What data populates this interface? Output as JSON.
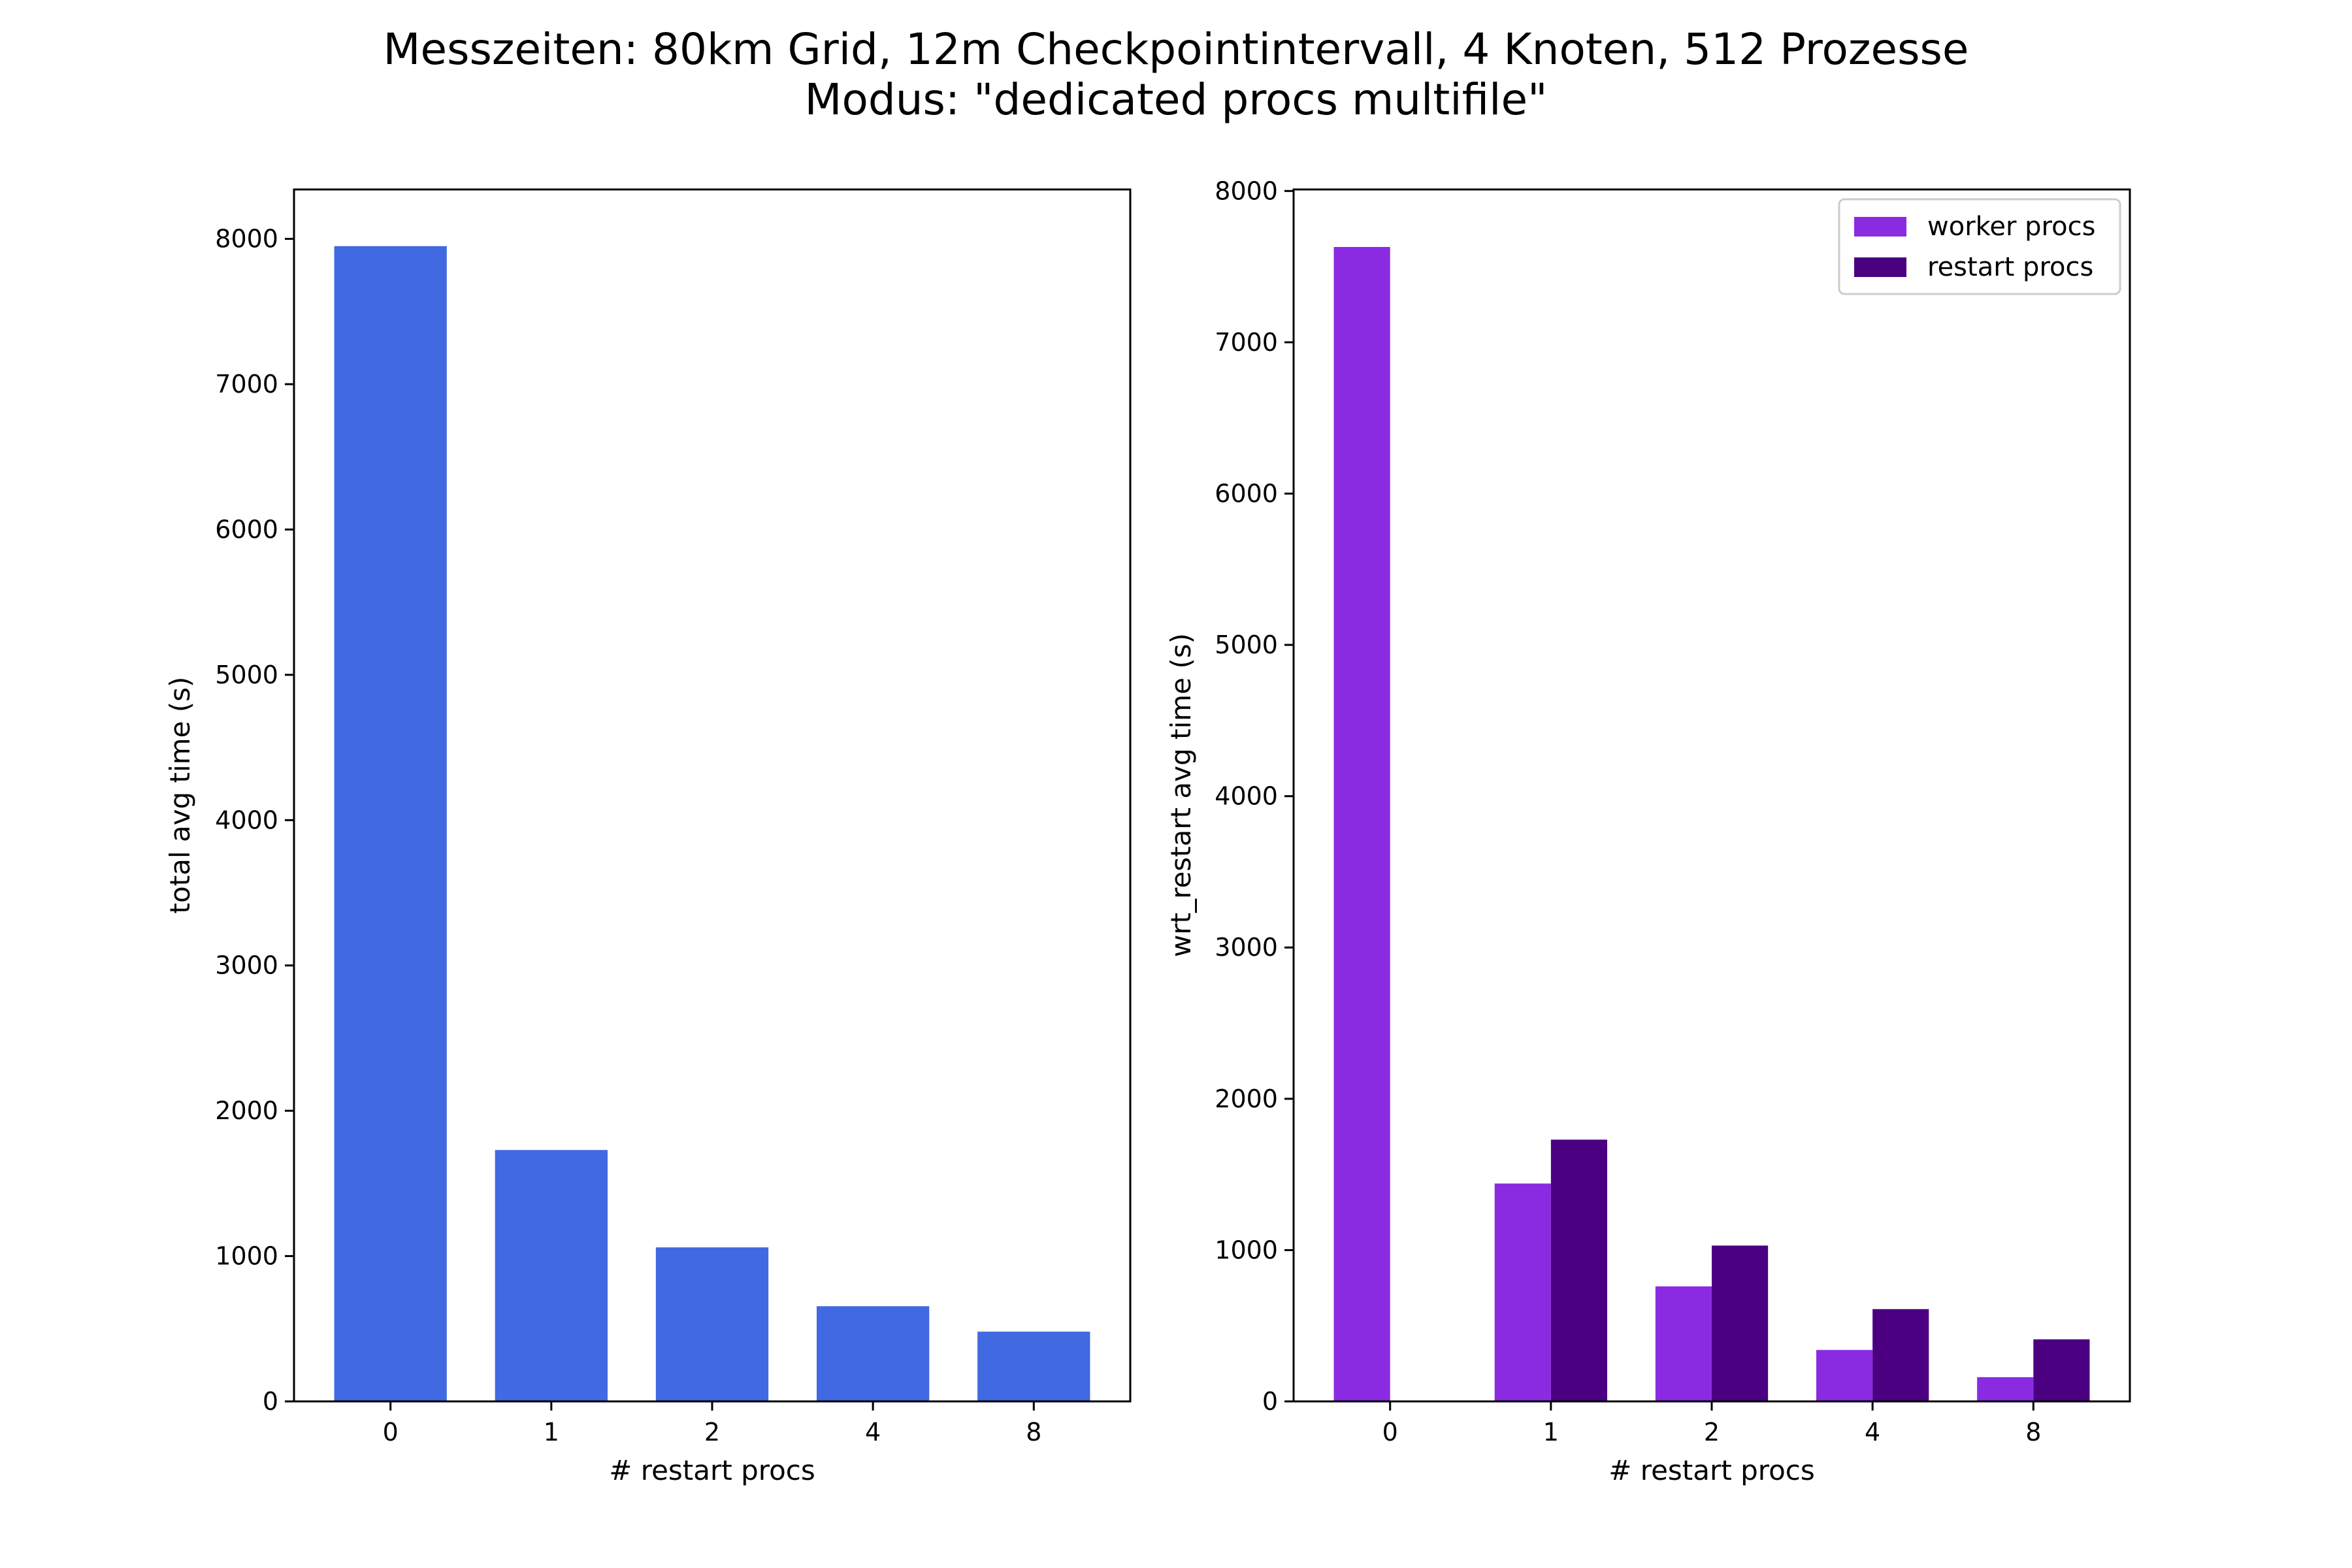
{
  "figure": {
    "title_line1": "Messzeiten: 80km Grid, 12m Checkpointintervall, 4 Knoten, 512 Prozesse",
    "title_line2": "Modus: \"dedicated procs multifile\""
  },
  "chart_data": [
    {
      "type": "bar",
      "categories": [
        "0",
        "1",
        "2",
        "4",
        "8"
      ],
      "values": [
        7950,
        1730,
        1060,
        655,
        480
      ],
      "color": "#4169e1",
      "xlabel": "# restart procs",
      "ylabel": "total avg time (s)",
      "ylim": [
        0,
        8340
      ],
      "yticks": [
        0,
        1000,
        2000,
        3000,
        4000,
        5000,
        6000,
        7000,
        8000
      ],
      "grid": false,
      "legend": false
    },
    {
      "type": "bar",
      "categories": [
        "0",
        "1",
        "2",
        "4",
        "8"
      ],
      "series": [
        {
          "name": "worker procs",
          "values": [
            7630,
            1440,
            760,
            340,
            160
          ],
          "color": "#8a2be2"
        },
        {
          "name": "restart procs",
          "values": [
            0,
            1730,
            1030,
            610,
            410
          ],
          "color": "#4b0082"
        }
      ],
      "xlabel": "# restart procs",
      "ylabel": "wrt_restart avg time (s)",
      "ylim": [
        0,
        8010
      ],
      "yticks": [
        0,
        1000,
        2000,
        3000,
        4000,
        5000,
        6000,
        7000,
        8000
      ],
      "grid": false,
      "legend": true,
      "legend_position": "upper right"
    }
  ]
}
